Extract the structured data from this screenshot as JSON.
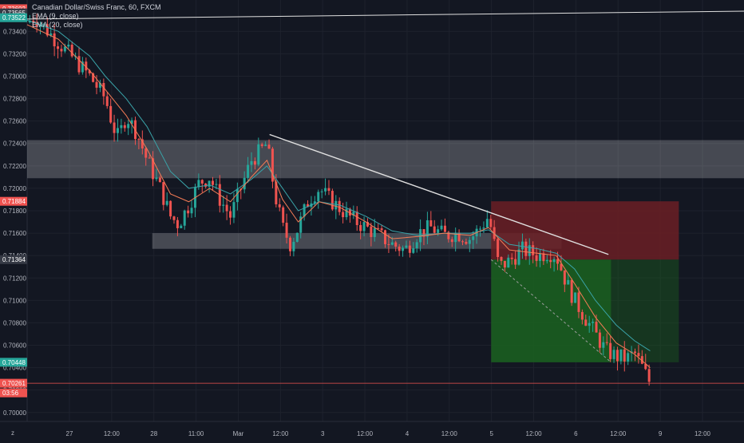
{
  "legend": {
    "title": "Canadian Dollar/Swiss Franc, 60, FXCM",
    "ema9": "EMA (9, close)",
    "ema20": "EMA (20, close)"
  },
  "colors": {
    "background": "#131722",
    "grid": "#1e222d",
    "axis_text": "#b2b5be",
    "up": "#26a69a",
    "down": "#ef5350",
    "ema9": "#f57c56",
    "ema20": "#3aa3a8",
    "zone": "#ffffff",
    "stop_zone": "#6b1f25",
    "target_zone": "#1b5e20",
    "trendline": "#e0e0e0"
  },
  "chart_data": {
    "type": "candlestick",
    "symbol": "Canadian Dollar/Swiss Franc",
    "interval": "60",
    "source": "FXCM",
    "ylim": [
      0.6992,
      0.7368
    ],
    "y_ticks": [
      "0.73400",
      "0.73200",
      "0.73000",
      "0.72800",
      "0.72600",
      "0.72400",
      "0.72200",
      "0.72000",
      "0.71800",
      "0.71600",
      "0.71400",
      "0.71200",
      "0.71000",
      "0.70800",
      "0.70600",
      "0.70400",
      "0.70200",
      "0.70000"
    ],
    "x_ticks": [
      "27",
      "12:00",
      "28",
      "11:00",
      "Mar",
      "12:00",
      "3",
      "12:00",
      "4",
      "12:00",
      "5",
      "12:00",
      "6",
      "12:00",
      "9",
      "12:00"
    ],
    "price_labels": [
      {
        "text": "0.73602",
        "value": 0.73602,
        "color": "#ef5350"
      },
      {
        "text": "0.73565",
        "value": 0.73565,
        "color": "#363a45"
      },
      {
        "text": "0.73522",
        "value": 0.73522,
        "color": "#26a69a"
      },
      {
        "text": "0.71884",
        "value": 0.71884,
        "color": "#ef5350"
      },
      {
        "text": "0.71364",
        "value": 0.71364,
        "color": "#363a45"
      },
      {
        "text": "0.70448",
        "value": 0.70448,
        "color": "#26a69a"
      },
      {
        "text": "0.70261",
        "value": 0.70261,
        "color": "#ef5350"
      },
      {
        "text": "03:56",
        "value": 0.70175,
        "color": "#ef5350"
      }
    ],
    "current_price": 0.70261,
    "ohlc_path": [
      [
        0,
        0.7348
      ],
      [
        0.3,
        0.7353
      ],
      [
        0.6,
        0.7345
      ],
      [
        1.2,
        0.733
      ],
      [
        1.8,
        0.7315
      ],
      [
        2.4,
        0.73
      ],
      [
        3.0,
        0.728
      ],
      [
        3.3,
        0.7255
      ],
      [
        3.5,
        0.7245
      ],
      [
        3.8,
        0.7265
      ],
      [
        4.2,
        0.725
      ],
      [
        4.6,
        0.7225
      ],
      [
        5.1,
        0.72
      ],
      [
        5.5,
        0.7175
      ],
      [
        5.8,
        0.7168
      ],
      [
        6.2,
        0.7185
      ],
      [
        6.6,
        0.7205
      ],
      [
        7.0,
        0.721
      ],
      [
        7.4,
        0.719
      ],
      [
        7.8,
        0.7175
      ],
      [
        8.2,
        0.72
      ],
      [
        8.6,
        0.7225
      ],
      [
        8.9,
        0.7232
      ],
      [
        9.2,
        0.724
      ],
      [
        9.5,
        0.7195
      ],
      [
        9.8,
        0.7165
      ],
      [
        10.1,
        0.715
      ],
      [
        10.4,
        0.7165
      ],
      [
        10.8,
        0.719
      ],
      [
        11.2,
        0.72
      ],
      [
        11.6,
        0.719
      ],
      [
        12.0,
        0.7182
      ],
      [
        12.5,
        0.7172
      ],
      [
        13.0,
        0.7165
      ],
      [
        13.5,
        0.7158
      ],
      [
        14.0,
        0.715
      ],
      [
        14.5,
        0.7145
      ],
      [
        15.0,
        0.716
      ],
      [
        15.5,
        0.7165
      ],
      [
        16.0,
        0.7158
      ],
      [
        16.5,
        0.716
      ],
      [
        17.0,
        0.7155
      ],
      [
        17.4,
        0.7165
      ],
      [
        17.7,
        0.7175
      ],
      [
        18.1,
        0.713
      ],
      [
        18.5,
        0.7135
      ],
      [
        19.0,
        0.7145
      ],
      [
        19.6,
        0.714
      ],
      [
        20.0,
        0.7143
      ],
      [
        20.3,
        0.714
      ],
      [
        20.7,
        0.7115
      ],
      [
        21.0,
        0.71
      ],
      [
        21.4,
        0.7085
      ],
      [
        21.8,
        0.707
      ],
      [
        22.2,
        0.7055
      ],
      [
        22.6,
        0.705
      ],
      [
        23.0,
        0.7048
      ],
      [
        23.3,
        0.7053
      ],
      [
        23.6,
        0.704
      ],
      [
        23.9,
        0.7026
      ]
    ],
    "ema9_path": [
      [
        0,
        0.7346
      ],
      [
        1.2,
        0.7333
      ],
      [
        2.4,
        0.7305
      ],
      [
        3.0,
        0.7288
      ],
      [
        3.8,
        0.7265
      ],
      [
        4.6,
        0.7235
      ],
      [
        5.5,
        0.7195
      ],
      [
        6.2,
        0.7188
      ],
      [
        7.0,
        0.72
      ],
      [
        7.8,
        0.7188
      ],
      [
        8.6,
        0.721
      ],
      [
        9.2,
        0.7225
      ],
      [
        9.8,
        0.719
      ],
      [
        10.4,
        0.717
      ],
      [
        11.2,
        0.7188
      ],
      [
        12.0,
        0.7183
      ],
      [
        13.0,
        0.717
      ],
      [
        14.0,
        0.7155
      ],
      [
        15.0,
        0.7157
      ],
      [
        16.0,
        0.716
      ],
      [
        17.0,
        0.7158
      ],
      [
        17.7,
        0.7165
      ],
      [
        18.5,
        0.7145
      ],
      [
        19.6,
        0.7142
      ],
      [
        20.3,
        0.714
      ],
      [
        21.0,
        0.7115
      ],
      [
        21.8,
        0.7085
      ],
      [
        22.6,
        0.7062
      ],
      [
        23.3,
        0.7052
      ],
      [
        23.9,
        0.704
      ]
    ],
    "ema20_path": [
      [
        0,
        0.735
      ],
      [
        1.2,
        0.734
      ],
      [
        2.4,
        0.7318
      ],
      [
        3.0,
        0.73
      ],
      [
        3.8,
        0.728
      ],
      [
        4.6,
        0.7255
      ],
      [
        5.5,
        0.7215
      ],
      [
        6.2,
        0.72
      ],
      [
        7.0,
        0.7203
      ],
      [
        7.8,
        0.7195
      ],
      [
        8.6,
        0.7208
      ],
      [
        9.2,
        0.722
      ],
      [
        9.8,
        0.72
      ],
      [
        10.4,
        0.718
      ],
      [
        11.2,
        0.7188
      ],
      [
        12.0,
        0.7185
      ],
      [
        13.0,
        0.7175
      ],
      [
        14.0,
        0.7162
      ],
      [
        15.0,
        0.7158
      ],
      [
        16.0,
        0.716
      ],
      [
        17.0,
        0.716
      ],
      [
        17.7,
        0.7163
      ],
      [
        18.5,
        0.715
      ],
      [
        19.6,
        0.7146
      ],
      [
        20.3,
        0.7142
      ],
      [
        21.0,
        0.7128
      ],
      [
        21.8,
        0.71
      ],
      [
        22.6,
        0.7078
      ],
      [
        23.3,
        0.7064
      ],
      [
        23.9,
        0.7055
      ]
    ],
    "x_domain": [
      0,
      27.5
    ],
    "zones": [
      {
        "name": "resistance-zone",
        "x1": 0,
        "x2": 27.5,
        "y1": 0.7243,
        "y2": 0.7209
      },
      {
        "name": "support-zone",
        "x1": 4.8,
        "x2": 20.5,
        "y1": 0.716,
        "y2": 0.7146
      }
    ],
    "position": {
      "entry": 0.71364,
      "stop": 0.71884,
      "target": 0.70448,
      "x1": 17.8,
      "x2": 25.0,
      "split_x": 22.4
    },
    "trendlines": [
      {
        "name": "top-right-trendline",
        "x1": 17.4,
        "y1": 0.74,
        "x2": 27.5,
        "y2": 0.7386
      },
      {
        "name": "top-left-line",
        "x1": 0,
        "y1": 0.7351,
        "x2": 27.5,
        "y2": 0.7358
      },
      {
        "name": "descending-trendline",
        "x1": 9.3,
        "y1": 0.7248,
        "x2": 22.3,
        "y2": 0.7141
      }
    ]
  }
}
